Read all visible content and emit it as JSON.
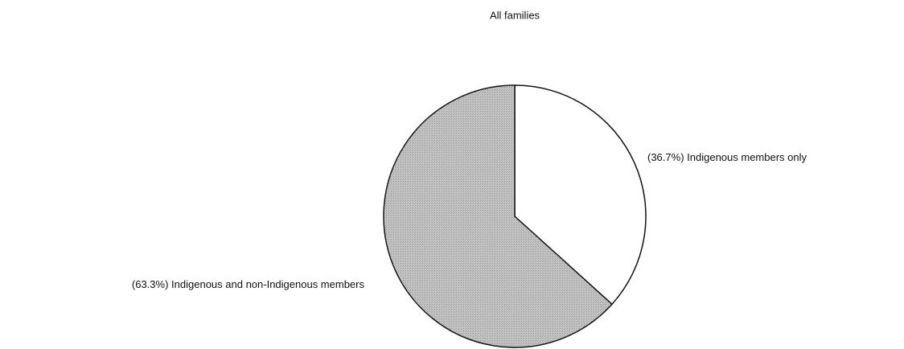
{
  "chart_data": {
    "type": "pie",
    "title": "All families",
    "categories": [
      "Indigenous members only",
      "Indigenous and non-Indigenous members"
    ],
    "values": [
      36.7,
      63.3
    ],
    "value_labels": [
      "(36.7%)",
      "(63.3%)"
    ],
    "colors": [
      "#ffffff",
      "#c4c4c4"
    ]
  }
}
